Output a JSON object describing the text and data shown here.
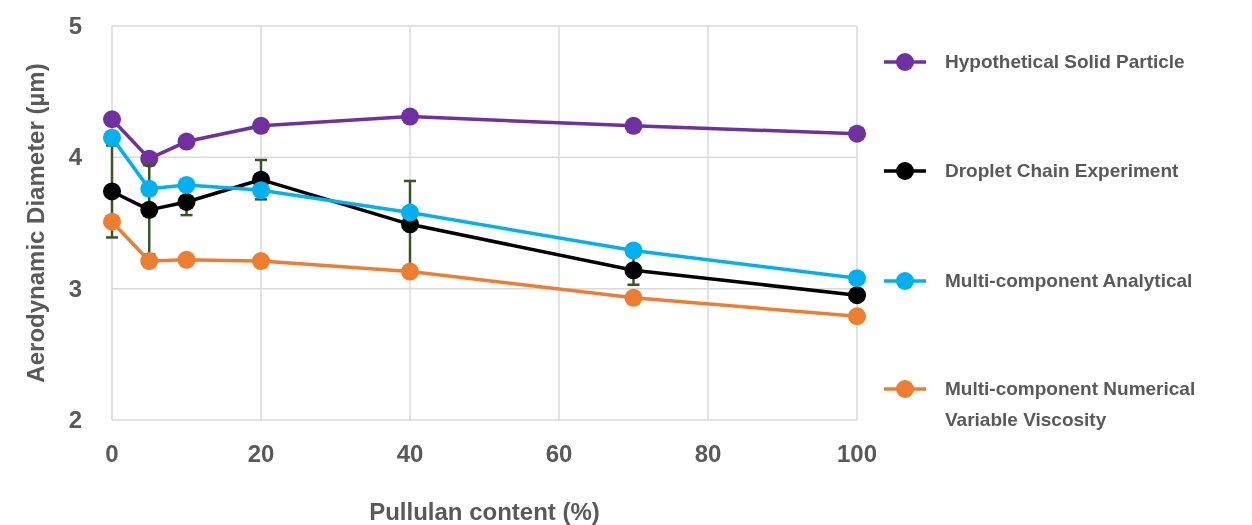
{
  "chart_data": {
    "type": "line",
    "xlabel": "Pullulan content (%)",
    "ylabel": "Aerodynamic Diameter (µm)",
    "x": [
      0,
      5,
      10,
      20,
      40,
      70,
      100
    ],
    "xlim": [
      0,
      100
    ],
    "xticks": [
      0,
      20,
      40,
      60,
      80,
      100
    ],
    "ylim": [
      2,
      5
    ],
    "yticks": [
      2,
      3,
      4,
      5
    ],
    "grid": true,
    "legend": "right",
    "marker": "circle",
    "line_style": "solid",
    "series": [
      {
        "name": "Hypothetical Solid Particle",
        "color": "#7030a0",
        "values": [
          4.29,
          3.99,
          4.12,
          4.24,
          4.31,
          4.24,
          4.18
        ]
      },
      {
        "name": "Droplet Chain Experiment",
        "color": "#000000",
        "values": [
          3.74,
          3.6,
          3.66,
          3.83,
          3.49,
          3.14,
          2.95
        ],
        "errors": [
          0.35,
          0.34,
          0.1,
          0.15,
          0.33,
          0.11,
          null
        ]
      },
      {
        "name": "Multi-component Analytical",
        "color": "#00b0f0",
        "values": [
          4.15,
          3.76,
          3.79,
          3.75,
          3.58,
          3.29,
          3.08
        ]
      },
      {
        "name": "Multi-component Numerical Variable Viscosity",
        "color": "#ed7d31",
        "values": [
          3.51,
          3.21,
          3.22,
          3.21,
          3.13,
          2.93,
          2.79
        ]
      }
    ]
  }
}
